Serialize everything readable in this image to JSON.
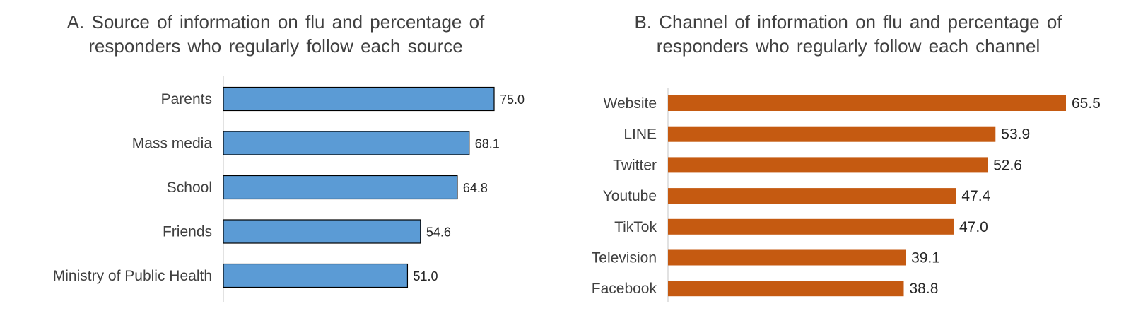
{
  "chart_data": [
    {
      "type": "bar",
      "orientation": "horizontal",
      "title": "A. Source of  information on flu and percentage of responders who regularly follow each source",
      "title_lines": [
        "A. Source of  information on flu and percentage of",
        "responders who regularly follow each source"
      ],
      "categories": [
        "Parents",
        "Mass media",
        "School",
        "Friends",
        "Ministry of Public Health"
      ],
      "values": [
        75.0,
        68.1,
        64.8,
        54.6,
        51.0
      ],
      "value_labels": [
        "75.0",
        "68.1",
        "64.8",
        "54.6",
        "51.0"
      ],
      "bar_color": "#5B9BD5",
      "bar_outline": "#000000",
      "xlim": [
        0,
        80
      ],
      "xlabel": "",
      "ylabel": "",
      "grid": false
    },
    {
      "type": "bar",
      "orientation": "horizontal",
      "title": "B. Channel of information on flu and percentage of responders who regularly follow each channel",
      "title_lines": [
        "B. Channel of information on flu and percentage of",
        "responders who regularly follow each channel"
      ],
      "categories": [
        "Website",
        "LINE",
        "Twitter",
        "Youtube",
        "TikTok",
        "Television",
        "Facebook"
      ],
      "values": [
        65.5,
        53.9,
        52.6,
        47.4,
        47.0,
        39.1,
        38.8
      ],
      "value_labels": [
        "65.5",
        "53.9",
        "52.6",
        "47.4",
        "47.0",
        "39.1",
        "38.8"
      ],
      "bar_color": "#C55A11",
      "xlim": [
        0,
        70
      ],
      "xlabel": "",
      "ylabel": "",
      "grid": false
    }
  ]
}
